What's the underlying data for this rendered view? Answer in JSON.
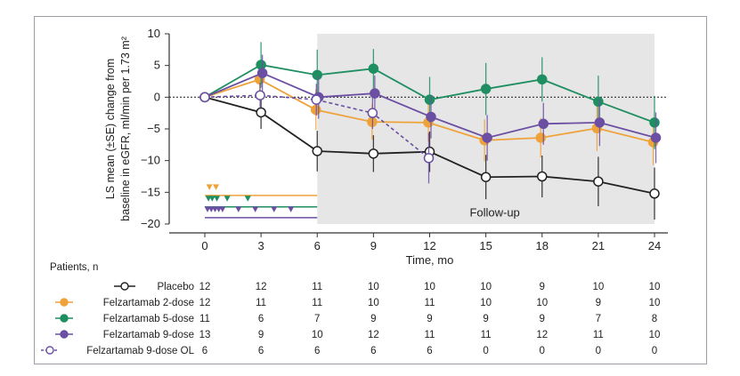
{
  "chart_data": {
    "type": "line",
    "ylabel": "LS mean (±SE) change from baseline in eGFR, ml/min per 1.73 m²",
    "xlabel": "Time, mo",
    "x": [
      0,
      3,
      6,
      9,
      12,
      15,
      18,
      21,
      24
    ],
    "xticks": [
      "0",
      "3",
      "6",
      "9",
      "12",
      "15",
      "18",
      "21",
      "24"
    ],
    "yticks": [
      "10",
      "5",
      "0",
      "−5",
      "−10",
      "−15",
      "−20"
    ],
    "ylim": [
      -20,
      10
    ],
    "xlim": [
      0,
      24
    ],
    "shaded_region": {
      "label": "Follow-up",
      "x": [
        6,
        24
      ]
    },
    "reference_line": 0,
    "series": [
      {
        "name": "Placebo",
        "color": "#222222",
        "marker": "open",
        "dashed": false,
        "values": [
          0,
          -2.4,
          -8.5,
          -8.9,
          -8.6,
          -12.6,
          -12.5,
          -13.3,
          -15.2
        ],
        "se": [
          0,
          2.6,
          3.2,
          2.9,
          3.2,
          3.5,
          3.3,
          3.9,
          4.1
        ]
      },
      {
        "name": "Felzartamab 2-dose",
        "color": "#f0a23a",
        "marker": "filled",
        "dashed": false,
        "values": [
          0,
          2.8,
          -2,
          -3.9,
          -4,
          -6.8,
          -6.4,
          -4.9,
          -7.1
        ],
        "se": [
          0,
          3.0,
          3.2,
          2.8,
          3.0,
          3.3,
          3.1,
          3.6,
          3.6
        ]
      },
      {
        "name": "Felzartamab 5-dose",
        "color": "#1f8f62",
        "marker": "filled",
        "dashed": false,
        "values": [
          0,
          5.1,
          3.5,
          4.5,
          -0.4,
          1.3,
          2.8,
          -0.7,
          -4
        ],
        "se": [
          0,
          3.6,
          4.0,
          3.1,
          3.6,
          4.1,
          3.5,
          4.1,
          4.2
        ]
      },
      {
        "name": "Felzartamab 9-dose",
        "color": "#6a4fa3",
        "marker": "filled",
        "dashed": false,
        "values": [
          0,
          3.8,
          0,
          0.6,
          -3.1,
          -6.4,
          -4.2,
          -4,
          -6.4
        ],
        "se": [
          0,
          2.9,
          3.4,
          2.8,
          3.4,
          3.6,
          3.3,
          3.7,
          4.0
        ]
      },
      {
        "name": "Felzartamab 9-dose OL",
        "color": "#6a4fa3",
        "marker": "open",
        "dashed": true,
        "values": [
          0,
          0.3,
          -0.4,
          -2.5,
          -9.6,
          null,
          null,
          null,
          null
        ],
        "se": [
          0,
          2.0,
          2.5,
          2.5,
          4.0,
          null,
          null,
          null,
          null
        ]
      }
    ],
    "dosing_markers": [
      {
        "series": "Felzartamab 2-dose",
        "color": "#f0a23a",
        "months": [
          0.15,
          0.5
        ],
        "line_level": -15.5
      },
      {
        "series": "Felzartamab 5-dose",
        "color": "#1f8f62",
        "months": [
          0.1,
          0.3,
          0.55,
          1.1,
          2.2
        ],
        "line_level": -17.3
      },
      {
        "series": "Felzartamab 9-dose",
        "color": "#6a4fa3",
        "months": [
          0.05,
          0.25,
          0.45,
          0.65,
          0.85,
          1.7,
          2.6,
          3.6,
          4.5
        ],
        "line_level": -19
      }
    ]
  },
  "patients_table": {
    "title": "Patients, n",
    "rows": [
      {
        "label": "Placebo",
        "counts": [
          "12",
          "12",
          "11",
          "10",
          "10",
          "10",
          "9",
          "10",
          "10"
        ]
      },
      {
        "label": "Felzartamab 2-dose",
        "counts": [
          "12",
          "11",
          "11",
          "10",
          "11",
          "10",
          "10",
          "9",
          "10"
        ]
      },
      {
        "label": "Felzartamab 5-dose",
        "counts": [
          "11",
          "6",
          "7",
          "9",
          "9",
          "9",
          "9",
          "7",
          "8"
        ]
      },
      {
        "label": "Felzartamab 9-dose",
        "counts": [
          "13",
          "9",
          "10",
          "12",
          "11",
          "11",
          "12",
          "11",
          "10"
        ]
      },
      {
        "label": "Felzartamab 9-dose OL",
        "counts": [
          "6",
          "6",
          "6",
          "6",
          "6",
          "0",
          "0",
          "0",
          "0"
        ]
      }
    ]
  }
}
